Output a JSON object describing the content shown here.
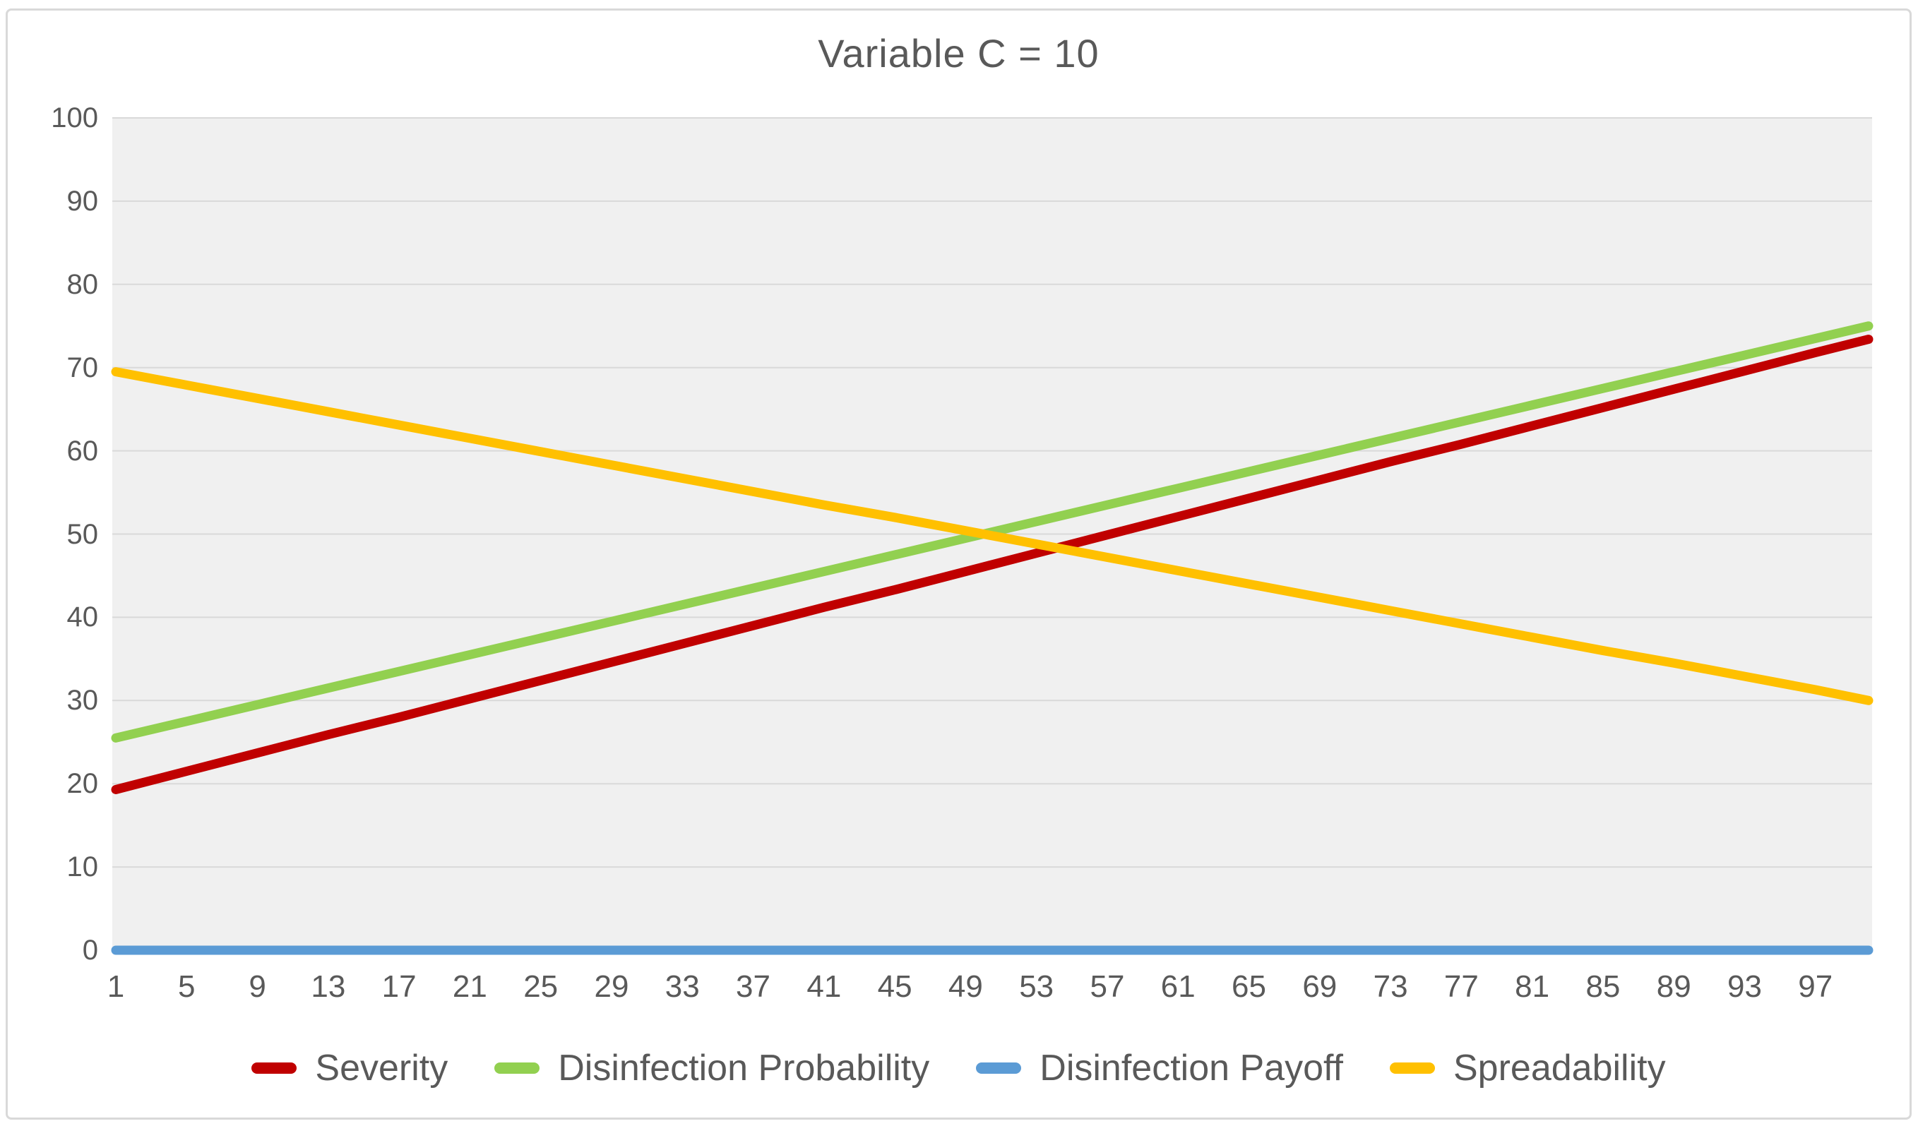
{
  "chart_title": "Variable C = 10",
  "chart_data": {
    "type": "line",
    "title": "Variable C = 10",
    "xlabel": "",
    "ylabel": "",
    "ylim": [
      0,
      100
    ],
    "y_ticks": [
      0,
      10,
      20,
      30,
      40,
      50,
      60,
      70,
      80,
      90,
      100
    ],
    "x_ticks_shown": [
      1,
      5,
      9,
      13,
      17,
      21,
      25,
      29,
      33,
      37,
      41,
      45,
      49,
      53,
      57,
      61,
      65,
      69,
      73,
      77,
      81,
      85,
      89,
      93,
      97
    ],
    "x_range": [
      1,
      100
    ],
    "x": [
      1,
      5,
      9,
      13,
      17,
      21,
      25,
      29,
      33,
      37,
      41,
      45,
      49,
      53,
      57,
      61,
      65,
      69,
      73,
      77,
      81,
      85,
      89,
      93,
      97,
      100
    ],
    "grid": "horizontal",
    "legend_position": "bottom",
    "plot_bg_color": "#F0F0F0",
    "gridline_color": "#D9D9D9",
    "text_color": "#595959",
    "frame_border_color": "#D9D9D9",
    "line_width": 13,
    "series": [
      {
        "name": "Severity",
        "color": "#C00000",
        "values": [
          19.3,
          21.5,
          23.7,
          25.9,
          28.0,
          30.2,
          32.4,
          34.6,
          36.8,
          39.0,
          41.2,
          43.3,
          45.5,
          47.7,
          49.9,
          52.1,
          54.3,
          56.5,
          58.7,
          60.8,
          63.0,
          65.2,
          67.4,
          69.6,
          71.8,
          73.4
        ]
      },
      {
        "name": "Disinfection Probability",
        "color": "#92D050",
        "values": [
          25.5,
          27.5,
          29.5,
          31.5,
          33.5,
          35.5,
          37.5,
          39.5,
          41.5,
          43.5,
          45.5,
          47.5,
          49.5,
          51.5,
          53.5,
          55.5,
          57.5,
          59.5,
          61.5,
          63.5,
          65.5,
          67.5,
          69.5,
          71.5,
          73.5,
          75.0
        ]
      },
      {
        "name": "Disinfection Payoff",
        "color": "#5B9BD5",
        "values": [
          0,
          0,
          0,
          0,
          0,
          0,
          0,
          0,
          0,
          0,
          0,
          0,
          0,
          0,
          0,
          0,
          0,
          0,
          0,
          0,
          0,
          0,
          0,
          0,
          0,
          0
        ]
      },
      {
        "name": "Spreadability",
        "color": "#FFC000",
        "values": [
          69.5,
          67.9,
          66.3,
          64.7,
          63.1,
          61.5,
          59.9,
          58.3,
          56.7,
          55.1,
          53.5,
          52.0,
          50.4,
          48.8,
          47.2,
          45.6,
          44.0,
          42.4,
          40.8,
          39.2,
          37.6,
          36.0,
          34.5,
          32.9,
          31.3,
          30.0
        ]
      }
    ]
  }
}
